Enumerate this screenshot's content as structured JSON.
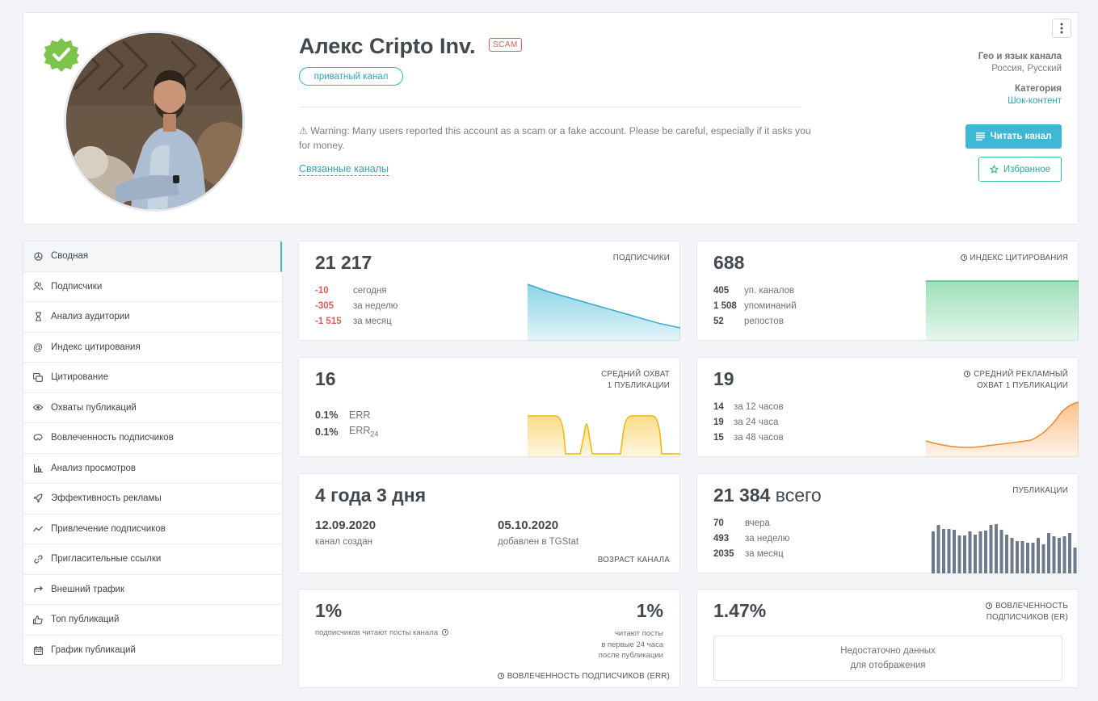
{
  "header": {
    "title": "Алекс Cripto Inv.",
    "scam_badge": "SCAM",
    "private_label": "приватный канал",
    "warning": "⚠ Warning: Many users reported this account as a scam or a fake account. Please be careful, especially if it asks you for money.",
    "related_link": "Связанные каналы",
    "geo_label": "Гео и язык канала",
    "geo_value": "Россия, Русский",
    "category_label": "Категория",
    "category_value": "Шок-контент",
    "read_button": "Читать канал",
    "favorite_button": "Избранное"
  },
  "sidebar": {
    "items": [
      {
        "label": "Сводная",
        "icon": "summary-icon"
      },
      {
        "label": "Подписчики",
        "icon": "users-icon"
      },
      {
        "label": "Анализ аудитории",
        "icon": "hourglass-icon"
      },
      {
        "label": "Индекс цитирования",
        "icon": "at-icon"
      },
      {
        "label": "Цитирование",
        "icon": "quote-icon"
      },
      {
        "label": "Охваты публикаций",
        "icon": "eye-icon"
      },
      {
        "label": "Вовлеченность подписчиков",
        "icon": "engagement-icon"
      },
      {
        "label": "Анализ просмотров",
        "icon": "bar-chart-icon"
      },
      {
        "label": "Эффективность рекламы",
        "icon": "rocket-icon"
      },
      {
        "label": "Привлечение подписчиков",
        "icon": "trend-icon"
      },
      {
        "label": "Пригласительные ссылки",
        "icon": "link-icon"
      },
      {
        "label": "Внешний трафик",
        "icon": "share-icon"
      },
      {
        "label": "Топ публикаций",
        "icon": "thumbs-up-icon"
      },
      {
        "label": "График публикаций",
        "icon": "calendar-icon"
      }
    ]
  },
  "subscribers": {
    "value": "21 217",
    "caption": "ПОДПИСЧИКИ",
    "rows": [
      {
        "n": "-10",
        "l": "сегодня"
      },
      {
        "n": "-305",
        "l": "за неделю"
      },
      {
        "n": "-1 515",
        "l": "за месяц"
      }
    ],
    "trend": [
      21245,
      21240,
      21236,
      21232,
      21228,
      21224,
      21220,
      21217
    ]
  },
  "citation": {
    "value": "688",
    "caption": "ИНДЕКС ЦИТИРОВАНИЯ",
    "rows": [
      {
        "n": "405",
        "l": "уп. каналов"
      },
      {
        "n": "1 508",
        "l": "упоминаний"
      },
      {
        "n": "52",
        "l": "репостов"
      }
    ]
  },
  "reach": {
    "value": "16",
    "caption1": "СРЕДНИЙ ОХВАТ",
    "caption2": "1 ПУБЛИКАЦИИ",
    "err_value": "0.1%",
    "err_label": "ERR",
    "err24_value": "0.1%",
    "err24_label": "ERR",
    "err24_sub": "24"
  },
  "ad_reach": {
    "value": "19",
    "caption1": "СРЕДНИЙ РЕКЛАМНЫЙ",
    "caption2": "ОХВАТ 1 ПУБЛИКАЦИИ",
    "rows": [
      {
        "n": "14",
        "l": "за 12 часов"
      },
      {
        "n": "19",
        "l": "за 24 часа"
      },
      {
        "n": "15",
        "l": "за 48 часов"
      }
    ]
  },
  "age": {
    "value": "4 года 3 дня",
    "created_date": "12.09.2020",
    "created_label": "канал создан",
    "added_date": "05.10.2020",
    "added_label": "добавлен в TGStat",
    "caption": "ВОЗРАСТ КАНАЛА"
  },
  "posts": {
    "value": "21 384",
    "value_suffix": "всего",
    "caption": "ПУБЛИКАЦИИ",
    "rows": [
      {
        "n": "70",
        "l": "вчера"
      },
      {
        "n": "493",
        "l": "за неделю"
      },
      {
        "n": "2035",
        "l": "за месяц"
      }
    ],
    "bars": [
      52,
      60,
      55,
      55,
      54,
      47,
      47,
      52,
      48,
      52,
      53,
      60,
      61,
      54,
      48,
      44,
      40,
      40,
      38,
      38,
      44,
      36,
      50,
      46,
      44,
      46,
      50,
      32
    ]
  },
  "err_card": {
    "left_value": "1%",
    "left_label": "подписчиков читают посты канала",
    "right_value": "1%",
    "right_line1": "читают посты",
    "right_line2": "в первые 24 часа",
    "right_line3": "после публикации",
    "caption": "ВОВЛЕЧЕННОСТЬ ПОДПИСЧИКОВ (ERR)"
  },
  "er_card": {
    "value": "1.47%",
    "caption1": "ВОВЛЕЧЕННОСТЬ",
    "caption2": "ПОДПИСЧИКОВ (ER)",
    "empty_line1": "Недостаточно данных",
    "empty_line2": "для отображения"
  },
  "colors": {
    "accent": "#3fb7d6",
    "negative": "#e85b5b",
    "green": "#5cc98a",
    "yellow": "#f5c02b",
    "orange": "#f79a3e",
    "bars": "#6b7a8c"
  }
}
